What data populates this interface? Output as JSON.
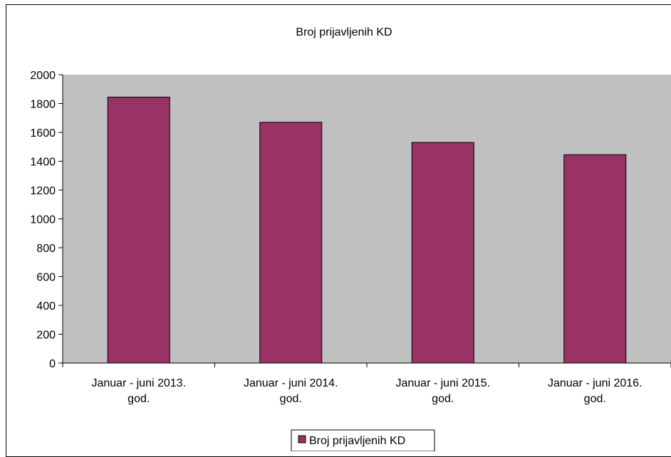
{
  "chart_data": {
    "type": "bar",
    "title": "Broj prijavljenih KD",
    "categories": [
      [
        "Januar - juni 2013.",
        "god."
      ],
      [
        "Januar - juni 2014.",
        "god."
      ],
      [
        "Januar - juni 2015.",
        "god."
      ],
      [
        "Januar - juni 2016.",
        "god."
      ]
    ],
    "series": [
      {
        "name": "Broj prijavljenih KD",
        "values": [
          1845,
          1670,
          1530,
          1445
        ]
      }
    ],
    "ylim": [
      0,
      2000
    ],
    "yticks": [
      0,
      200,
      400,
      600,
      800,
      1000,
      1200,
      1400,
      1600,
      1800,
      2000
    ],
    "xlabel": "",
    "ylabel": "",
    "grid": false,
    "legend": "bottom",
    "colors": {
      "bar": "#993366",
      "plot_background": "#c0c0c0"
    }
  }
}
